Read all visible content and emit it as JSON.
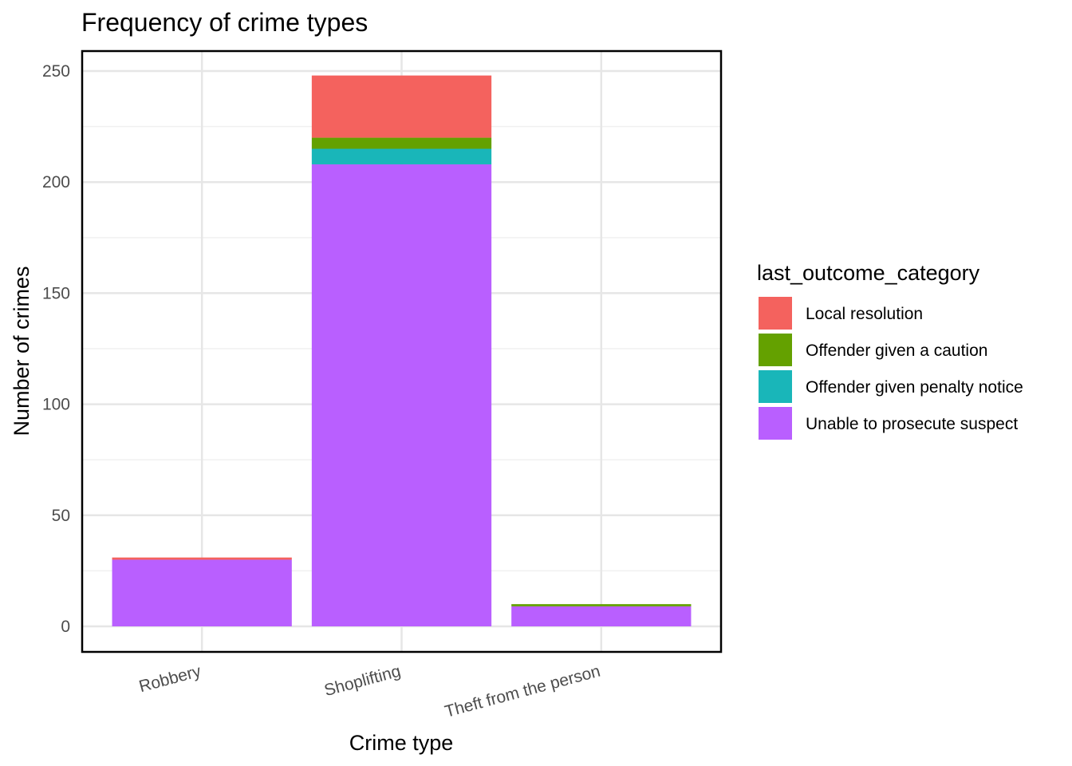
{
  "chart_data": {
    "type": "bar",
    "stacked": true,
    "title": "Frequency of crime types",
    "xlabel": "Crime type",
    "ylabel": "Number of crimes",
    "categories": [
      "Robbery",
      "Shoplifting",
      "Theft from the person"
    ],
    "ylim": [
      -11.5,
      259
    ],
    "yticks": [
      0,
      50,
      100,
      150,
      200,
      250
    ],
    "grid": true,
    "legend": {
      "title": "last_outcome_category",
      "position": "right"
    },
    "series": [
      {
        "name": "Unable to prosecute suspect",
        "color": "#B95FFF",
        "values": [
          30,
          208,
          9
        ]
      },
      {
        "name": "Offender given penalty notice",
        "color": "#19B6B9",
        "values": [
          0,
          7,
          0
        ]
      },
      {
        "name": "Offender given a caution",
        "color": "#64A100",
        "values": [
          0,
          5,
          1
        ]
      },
      {
        "name": "Local resolution",
        "color": "#F4625E",
        "values": [
          1,
          28,
          0
        ]
      }
    ]
  }
}
